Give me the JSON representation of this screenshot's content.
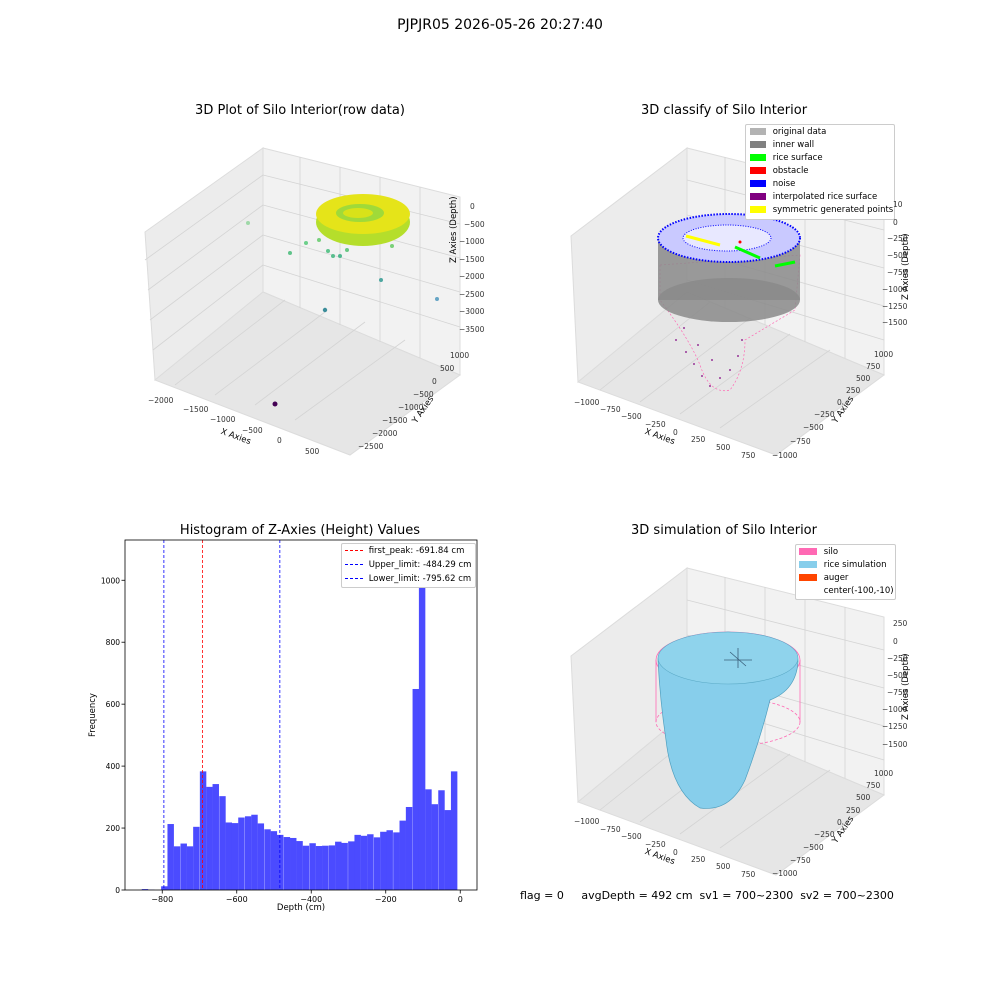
{
  "page_title": "PJPJR05 2026-05-26 20:27:40",
  "panels": {
    "raw": {
      "title": "3D Plot of Silo Interior(row data)",
      "xlabel": "X Axies",
      "ylabel": "Y Axies",
      "zlabel": "Z Axies (Depth)",
      "xticks": [
        "−2000",
        "−1500",
        "−1000",
        "−500",
        "0",
        "500"
      ],
      "yticks": [
        "1000",
        "500",
        "0",
        "−500",
        "−1000",
        "−1500",
        "−2000",
        "−2500"
      ],
      "zticks": [
        "0",
        "−500",
        "−1000",
        "−1500",
        "−2000",
        "−2500",
        "−3000",
        "−3500"
      ]
    },
    "classify": {
      "title": "3D classify of Silo Interior",
      "xlabel": "X Axies",
      "ylabel": "Y Axies",
      "zlabel": "Z Axies (Depth)",
      "xticks": [
        "−1000",
        "−750",
        "−500",
        "−250",
        "0",
        "250",
        "500",
        "750"
      ],
      "yticks": [
        "1000",
        "750",
        "500",
        "250",
        "0",
        "−250",
        "−500",
        "−750",
        "−1000"
      ],
      "zticks": [
        "0",
        "−250",
        "−500",
        "−750",
        "−1000",
        "−1250",
        "−1500"
      ],
      "ztop": "10",
      "legend": [
        {
          "label": "original data",
          "color": "#b3b3b3"
        },
        {
          "label": "inner wall",
          "color": "#808080"
        },
        {
          "label": "rice surface",
          "color": "#00ff00"
        },
        {
          "label": "obstacle",
          "color": "#ff0000"
        },
        {
          "label": "noise",
          "color": "#0000ff"
        },
        {
          "label": "interpolated rice surface",
          "color": "#800080"
        },
        {
          "label": "symmetric generated points",
          "color": "#ffff00"
        }
      ]
    },
    "simulation": {
      "title": "3D simulation of Silo Interior",
      "xlabel": "X Axies",
      "ylabel": "Y Axies",
      "zlabel": "Z Axies (Depth)",
      "xticks": [
        "−1000",
        "−750",
        "−500",
        "−250",
        "0",
        "250",
        "500",
        "750"
      ],
      "yticks": [
        "1000",
        "750",
        "500",
        "250",
        "0",
        "−250",
        "−500",
        "−750",
        "−1000"
      ],
      "zticks": [
        "250",
        "0",
        "−250",
        "−500",
        "−750",
        "−1000",
        "−1250",
        "−1500"
      ],
      "legend": [
        {
          "label": "silo",
          "color": "#ff69b4"
        },
        {
          "label": "rice simulation",
          "color": "#87ceeb"
        },
        {
          "label": "auger",
          "color": "#ff4500"
        },
        {
          "label": "center(-100,-10)",
          "color": ""
        }
      ]
    }
  },
  "status_line": "flag = 0     avgDepth = 492 cm  sv1 = 700~2300  sv2 = 700~2300",
  "chart_data": [
    {
      "type": "histogram",
      "title": "Histogram of Z-Axies (Height) Values",
      "xlabel": "Depth (cm)",
      "ylabel": "Frequency",
      "xlim": [
        -900,
        45
      ],
      "ylim": [
        0,
        1130
      ],
      "xticks": [
        -800,
        -600,
        -400,
        -200,
        0
      ],
      "xtick_labels": [
        "−800",
        "−600",
        "−400",
        "−200",
        "0"
      ],
      "yticks": [
        0,
        200,
        400,
        600,
        800,
        1000
      ],
      "bar_color": "#4b4bff",
      "bin_width": 17.3,
      "bins": [
        {
          "x0": -855,
          "count": 3
        },
        {
          "x0": -838,
          "count": 1
        },
        {
          "x0": -820,
          "count": 0
        },
        {
          "x0": -803,
          "count": 12
        },
        {
          "x0": -786,
          "count": 213
        },
        {
          "x0": -769,
          "count": 141
        },
        {
          "x0": -751,
          "count": 150
        },
        {
          "x0": -734,
          "count": 141
        },
        {
          "x0": -717,
          "count": 204
        },
        {
          "x0": -699,
          "count": 383
        },
        {
          "x0": -682,
          "count": 333
        },
        {
          "x0": -665,
          "count": 342
        },
        {
          "x0": -647,
          "count": 303
        },
        {
          "x0": -630,
          "count": 218
        },
        {
          "x0": -613,
          "count": 216
        },
        {
          "x0": -596,
          "count": 234
        },
        {
          "x0": -578,
          "count": 238
        },
        {
          "x0": -561,
          "count": 243
        },
        {
          "x0": -544,
          "count": 215
        },
        {
          "x0": -526,
          "count": 196
        },
        {
          "x0": -509,
          "count": 190
        },
        {
          "x0": -492,
          "count": 178
        },
        {
          "x0": -474,
          "count": 171
        },
        {
          "x0": -457,
          "count": 168
        },
        {
          "x0": -440,
          "count": 158
        },
        {
          "x0": -423,
          "count": 143
        },
        {
          "x0": -405,
          "count": 151
        },
        {
          "x0": -388,
          "count": 142
        },
        {
          "x0": -371,
          "count": 143
        },
        {
          "x0": -353,
          "count": 144
        },
        {
          "x0": -336,
          "count": 156
        },
        {
          "x0": -319,
          "count": 152
        },
        {
          "x0": -301,
          "count": 157
        },
        {
          "x0": -284,
          "count": 178
        },
        {
          "x0": -267,
          "count": 175
        },
        {
          "x0": -250,
          "count": 180
        },
        {
          "x0": -232,
          "count": 170
        },
        {
          "x0": -215,
          "count": 188
        },
        {
          "x0": -198,
          "count": 193
        },
        {
          "x0": -180,
          "count": 186
        },
        {
          "x0": -163,
          "count": 224
        },
        {
          "x0": -146,
          "count": 268
        },
        {
          "x0": -128,
          "count": 649
        },
        {
          "x0": -111,
          "count": 1080
        },
        {
          "x0": -94,
          "count": 325
        },
        {
          "x0": -77,
          "count": 277
        },
        {
          "x0": -59,
          "count": 322
        },
        {
          "x0": -42,
          "count": 258
        },
        {
          "x0": -25,
          "count": 383
        }
      ],
      "vlines": [
        {
          "x": -691.84,
          "color": "#ff0000",
          "label": "first_peak: -691.84 cm"
        },
        {
          "x": -484.29,
          "color": "#0000ff",
          "label": "Upper_limit: -484.29 cm"
        },
        {
          "x": -795.62,
          "color": "#0000ff",
          "label": "Lower_limit: -795.62 cm"
        }
      ],
      "legend_position": "top-right"
    }
  ]
}
